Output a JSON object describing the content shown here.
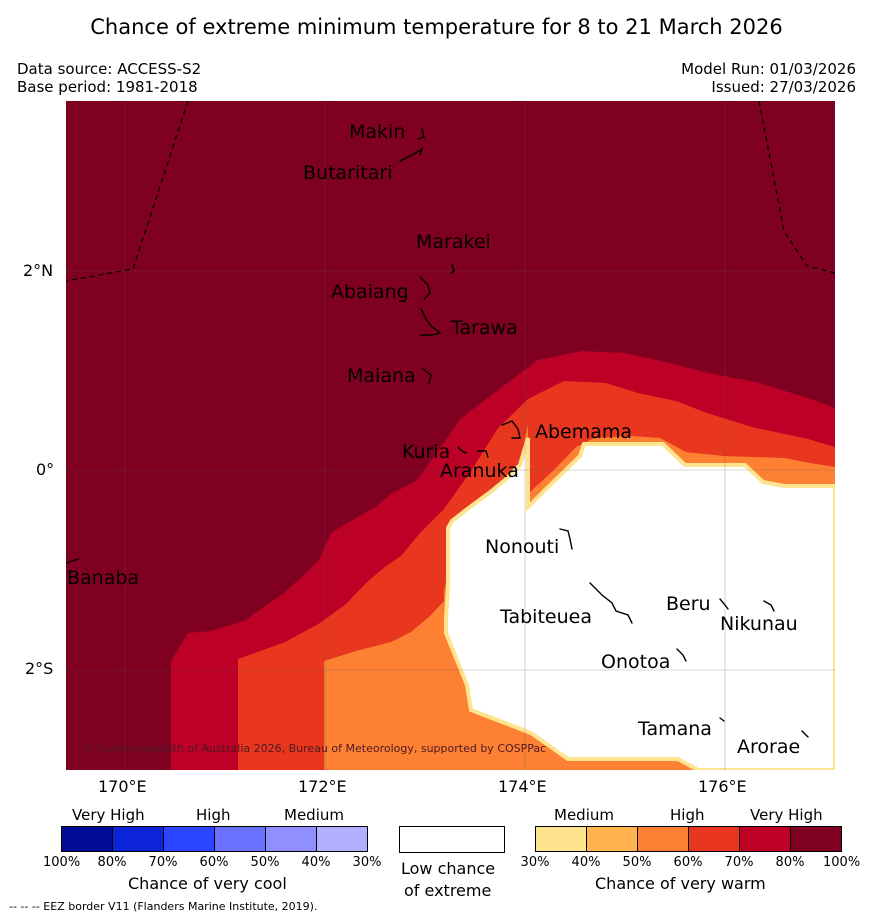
{
  "header": {
    "title": "Chance of extreme minimum temperature for 8 to 21 March 2026",
    "data_source": "Data source: ACCESS-S2",
    "base_period": "Base period: 1981-2018",
    "model_run": "Model Run: 01/03/2026",
    "issued": "Issued: 27/03/2026"
  },
  "map": {
    "lat_ticks": [
      "2°N",
      "0°",
      "2°S"
    ],
    "lon_ticks": [
      "170°E",
      "172°E",
      "174°E",
      "176°E"
    ],
    "islands": [
      "Makin",
      "Butaritari",
      "Marakei",
      "Abaiang",
      "Tarawa",
      "Maiana",
      "Abemama",
      "Kuria",
      "Aranuka",
      "Nonouti",
      "Banaba",
      "Tabiteuea",
      "Beru",
      "Nikunau",
      "Onotoa",
      "Tamana",
      "Arorae"
    ],
    "copyright": "© Commonwealth of Australia 2026, Bureau of Meteorology, supported by COSPPac",
    "colors": {
      "very_high_warm_dark": "#7f0020",
      "very_high_warm": "#bd0026",
      "high_warm_dark": "#e8361f",
      "high_warm": "#fd8033",
      "medium_warm": "#feb34f",
      "medium_warm_light": "#fee48f",
      "low_chance": "#ffffff"
    }
  },
  "legend": {
    "cool": {
      "categories": [
        "Very High",
        "High",
        "Medium"
      ],
      "percents": [
        "100%",
        "80%",
        "70%",
        "60%",
        "50%",
        "40%",
        "30%"
      ],
      "title": "Chance of very cool",
      "colors": [
        "#000c94",
        "#0b24d8",
        "#2a44ff",
        "#6a70ff",
        "#8f8fff",
        "#b0b0ff"
      ]
    },
    "neutral": {
      "title_line1": "Low chance",
      "title_line2": "of extreme"
    },
    "warm": {
      "categories": [
        "Medium",
        "High",
        "Very High"
      ],
      "percents": [
        "30%",
        "40%",
        "50%",
        "60%",
        "70%",
        "80%",
        "100%"
      ],
      "title": "Chance of very warm",
      "colors": [
        "#fee48f",
        "#feb34f",
        "#fd8033",
        "#e8361f",
        "#bd0026",
        "#7f0020"
      ]
    }
  },
  "footnote": "--  --  -- EEZ border V11 (Flanders Marine Institute, 2019)."
}
